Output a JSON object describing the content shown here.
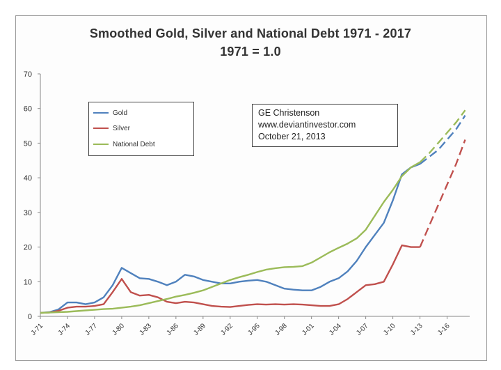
{
  "chart_data": {
    "type": "line",
    "title": "Smoothed Gold, Silver and National Debt 1971 - 2017",
    "subtitle": "1971 = 1.0",
    "ylim": [
      0,
      70
    ],
    "y_ticks": [
      0,
      10,
      20,
      30,
      40,
      50,
      60,
      70
    ],
    "x_tick_labels": [
      "J-71",
      "J-74",
      "J-77",
      "J-80",
      "J-83",
      "J-86",
      "J-89",
      "J-92",
      "J-95",
      "J-98",
      "J-01",
      "J-04",
      "J-07",
      "J-10",
      "J-13",
      "J-16"
    ],
    "x_tick_years": [
      1971,
      1974,
      1977,
      1980,
      1983,
      1986,
      1989,
      1992,
      1995,
      1998,
      2001,
      2004,
      2007,
      2010,
      2013,
      2016
    ],
    "xlim": [
      1971,
      2018.5
    ],
    "legend": {
      "placement": "upper-left"
    },
    "annotation": [
      "GE Christenson",
      "www.deviantinvestor.com",
      "October 21, 2013"
    ],
    "series": [
      {
        "name": "Gold",
        "color": "#4f81bd",
        "x": [
          1971,
          1972,
          1973,
          1974,
          1975,
          1976,
          1977,
          1978,
          1979,
          1980,
          1981,
          1982,
          1983,
          1984,
          1985,
          1986,
          1987,
          1988,
          1989,
          1990,
          1991,
          1992,
          1993,
          1994,
          1995,
          1996,
          1997,
          1998,
          1999,
          2000,
          2001,
          2002,
          2003,
          2004,
          2005,
          2006,
          2007,
          2008,
          2009,
          2010,
          2011,
          2012,
          2013
        ],
        "values": [
          1,
          1.2,
          2,
          4,
          4,
          3.5,
          4,
          5.5,
          9,
          14,
          12.5,
          11,
          10.8,
          10,
          9,
          10,
          12,
          11.5,
          10.5,
          10,
          9.5,
          9.5,
          10,
          10.3,
          10.5,
          10,
          9,
          8,
          7.7,
          7.5,
          7.5,
          8.5,
          10,
          11,
          13,
          16,
          20,
          23.5,
          27,
          33.5,
          41,
          43,
          44
        ],
        "projection": {
          "x": [
            2013,
            2014,
            2015,
            2016,
            2017,
            2018
          ],
          "values": [
            44,
            46,
            48,
            51,
            54,
            58
          ]
        }
      },
      {
        "name": "Silver",
        "color": "#c0504d",
        "x": [
          1971,
          1972,
          1973,
          1974,
          1975,
          1976,
          1977,
          1978,
          1979,
          1980,
          1981,
          1982,
          1983,
          1984,
          1985,
          1986,
          1987,
          1988,
          1989,
          1990,
          1991,
          1992,
          1993,
          1994,
          1995,
          1996,
          1997,
          1998,
          1999,
          2000,
          2001,
          2002,
          2003,
          2004,
          2005,
          2006,
          2007,
          2008,
          2009,
          2010,
          2011,
          2012,
          2013
        ],
        "values": [
          1,
          1.1,
          1.6,
          2.5,
          2.8,
          2.8,
          3,
          3.5,
          7,
          10.8,
          7,
          6,
          6.2,
          5.5,
          4.2,
          3.8,
          4.2,
          4,
          3.5,
          3,
          2.8,
          2.7,
          3,
          3.3,
          3.5,
          3.4,
          3.5,
          3.4,
          3.5,
          3.4,
          3.2,
          3,
          3,
          3.5,
          5,
          7,
          9,
          9.3,
          10,
          15,
          20.5,
          20,
          20
        ],
        "projection": {
          "x": [
            2013,
            2014,
            2015,
            2016,
            2017,
            2018
          ],
          "values": [
            20,
            26,
            32,
            38,
            44,
            51
          ]
        }
      },
      {
        "name": "National Debt",
        "color": "#9bbb59",
        "x": [
          1971,
          1972,
          1973,
          1974,
          1975,
          1976,
          1977,
          1978,
          1979,
          1980,
          1981,
          1982,
          1983,
          1984,
          1985,
          1986,
          1987,
          1988,
          1989,
          1990,
          1991,
          1992,
          1993,
          1994,
          1995,
          1996,
          1997,
          1998,
          1999,
          2000,
          2001,
          2002,
          2003,
          2004,
          2005,
          2006,
          2007,
          2008,
          2009,
          2010,
          2011,
          2012,
          2013
        ],
        "values": [
          1,
          1.1,
          1.2,
          1.3,
          1.5,
          1.7,
          1.9,
          2.1,
          2.2,
          2.5,
          2.8,
          3.2,
          3.8,
          4.4,
          5,
          5.7,
          6.2,
          6.8,
          7.5,
          8.5,
          9.5,
          10.5,
          11.3,
          12,
          12.8,
          13.5,
          13.9,
          14.2,
          14.3,
          14.5,
          15.5,
          17,
          18.5,
          19.8,
          21,
          22.5,
          25,
          29,
          33,
          36.5,
          40.5,
          43,
          44.5
        ],
        "projection": {
          "x": [
            2013,
            2014,
            2015,
            2016,
            2017,
            2018
          ],
          "values": [
            44.5,
            47,
            50,
            53,
            56,
            59.5
          ]
        }
      }
    ]
  }
}
